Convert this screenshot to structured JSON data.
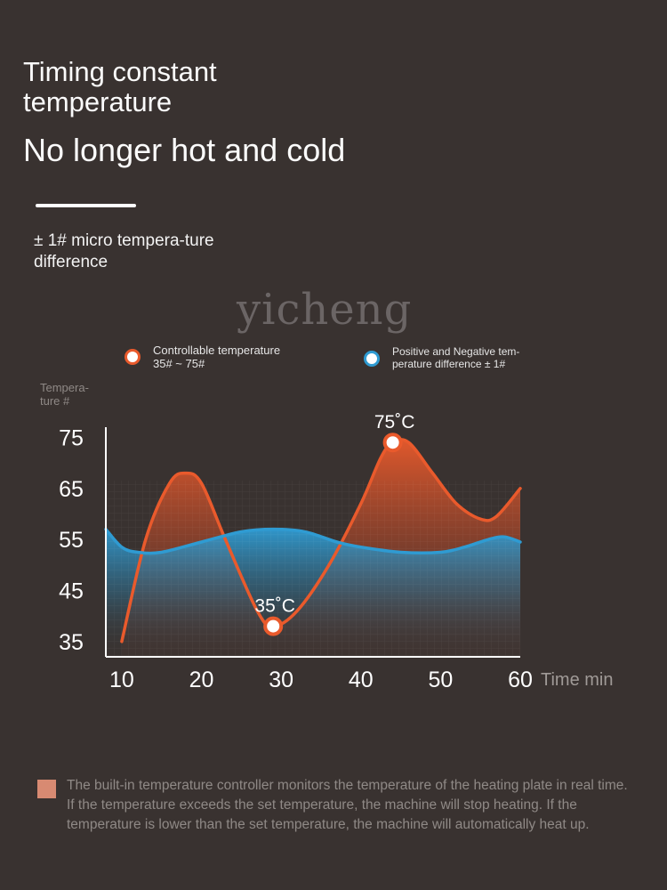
{
  "header": {
    "title_line1": "Timing constant temperature",
    "title_line2": "No longer hot and cold",
    "subtitle": "± 1# micro tempera-ture difference"
  },
  "brand": {
    "watermark": "yicheng"
  },
  "legend": {
    "controllable_label": "Controllable temperature",
    "controllable_range": "35# ~ 75#",
    "difference_label": "Positive and Negative tem-perature difference ± 1#"
  },
  "colors": {
    "background": "#393230",
    "accent_orange": "#e95a2c",
    "accent_blue": "#2f9bd2",
    "note_swatch": "#d88a72"
  },
  "chart_data": {
    "type": "area",
    "ylabel": "Tempera-ture #",
    "xlabel": "Time min",
    "xlim": [
      8,
      60
    ],
    "ylim": [
      32,
      77
    ],
    "x_ticks": [
      10,
      20,
      30,
      40,
      50,
      60
    ],
    "y_ticks": [
      75,
      65,
      55,
      45,
      35
    ],
    "series": [
      {
        "name": "Controllable temperature",
        "color": "#e95a2c",
        "points": [
          [
            10,
            35
          ],
          [
            13,
            55
          ],
          [
            16,
            66
          ],
          [
            18,
            68
          ],
          [
            20,
            66
          ],
          [
            23,
            55
          ],
          [
            27,
            41
          ],
          [
            29,
            38
          ],
          [
            32,
            41
          ],
          [
            36,
            50
          ],
          [
            40,
            62
          ],
          [
            42.5,
            71
          ],
          [
            44,
            74
          ],
          [
            46,
            74
          ],
          [
            49,
            68
          ],
          [
            52,
            62
          ],
          [
            55,
            59
          ],
          [
            57,
            59.5
          ],
          [
            60,
            65
          ]
        ]
      },
      {
        "name": "Positive and Negative temperature difference",
        "color": "#2f9bd2",
        "points": [
          [
            8,
            57
          ],
          [
            10,
            53.5
          ],
          [
            12,
            52.5
          ],
          [
            15,
            52.5
          ],
          [
            20,
            54.5
          ],
          [
            25,
            56.5
          ],
          [
            29,
            57
          ],
          [
            33,
            56.5
          ],
          [
            37,
            54.5
          ],
          [
            40,
            53.5
          ],
          [
            45,
            52.5
          ],
          [
            50,
            52.5
          ],
          [
            53,
            53.5
          ],
          [
            56,
            55
          ],
          [
            58,
            55.5
          ],
          [
            60,
            54.5
          ]
        ]
      }
    ],
    "annotations": [
      {
        "label": "35˚C",
        "x": 29,
        "y": 38
      },
      {
        "label": "75˚C",
        "x": 44,
        "y": 74
      }
    ]
  },
  "note": {
    "text": "The built-in temperature controller monitors the temperature of the heating plate in real time. If the temperature exceeds the set temperature, the machine will stop heating. If the temperature is lower than the set temperature, the machine will automatically heat up."
  }
}
